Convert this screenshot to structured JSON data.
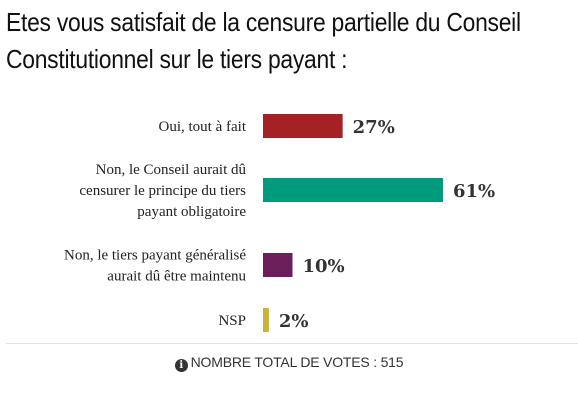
{
  "title": {
    "line1": "Etes vous satisfait de la censure partielle du Conseil",
    "line2": "Constitutionnel sur le tiers payant :"
  },
  "footer": {
    "icon": "info-icon",
    "text": "NOMBRE TOTAL DE VOTES : 515"
  },
  "chart_data": {
    "type": "bar",
    "orientation": "horizontal",
    "categories": [
      [
        "Oui, tout à fait"
      ],
      [
        "Non, le Conseil aurait dû",
        "censurer le principe du tiers",
        "payant obligatoire"
      ],
      [
        "Non, le tiers payant généralisé",
        "aurait dû être maintenu"
      ],
      [
        "NSP"
      ]
    ],
    "values": [
      27,
      61,
      10,
      2
    ],
    "value_labels": [
      "27%",
      "61%",
      "10%",
      "2%"
    ],
    "colors": [
      "#a52224",
      "#009a7c",
      "#6a1f5a",
      "#c8b43a"
    ],
    "unit": "%",
    "xlim": [
      0,
      100
    ],
    "grid": false,
    "legend": "none"
  }
}
